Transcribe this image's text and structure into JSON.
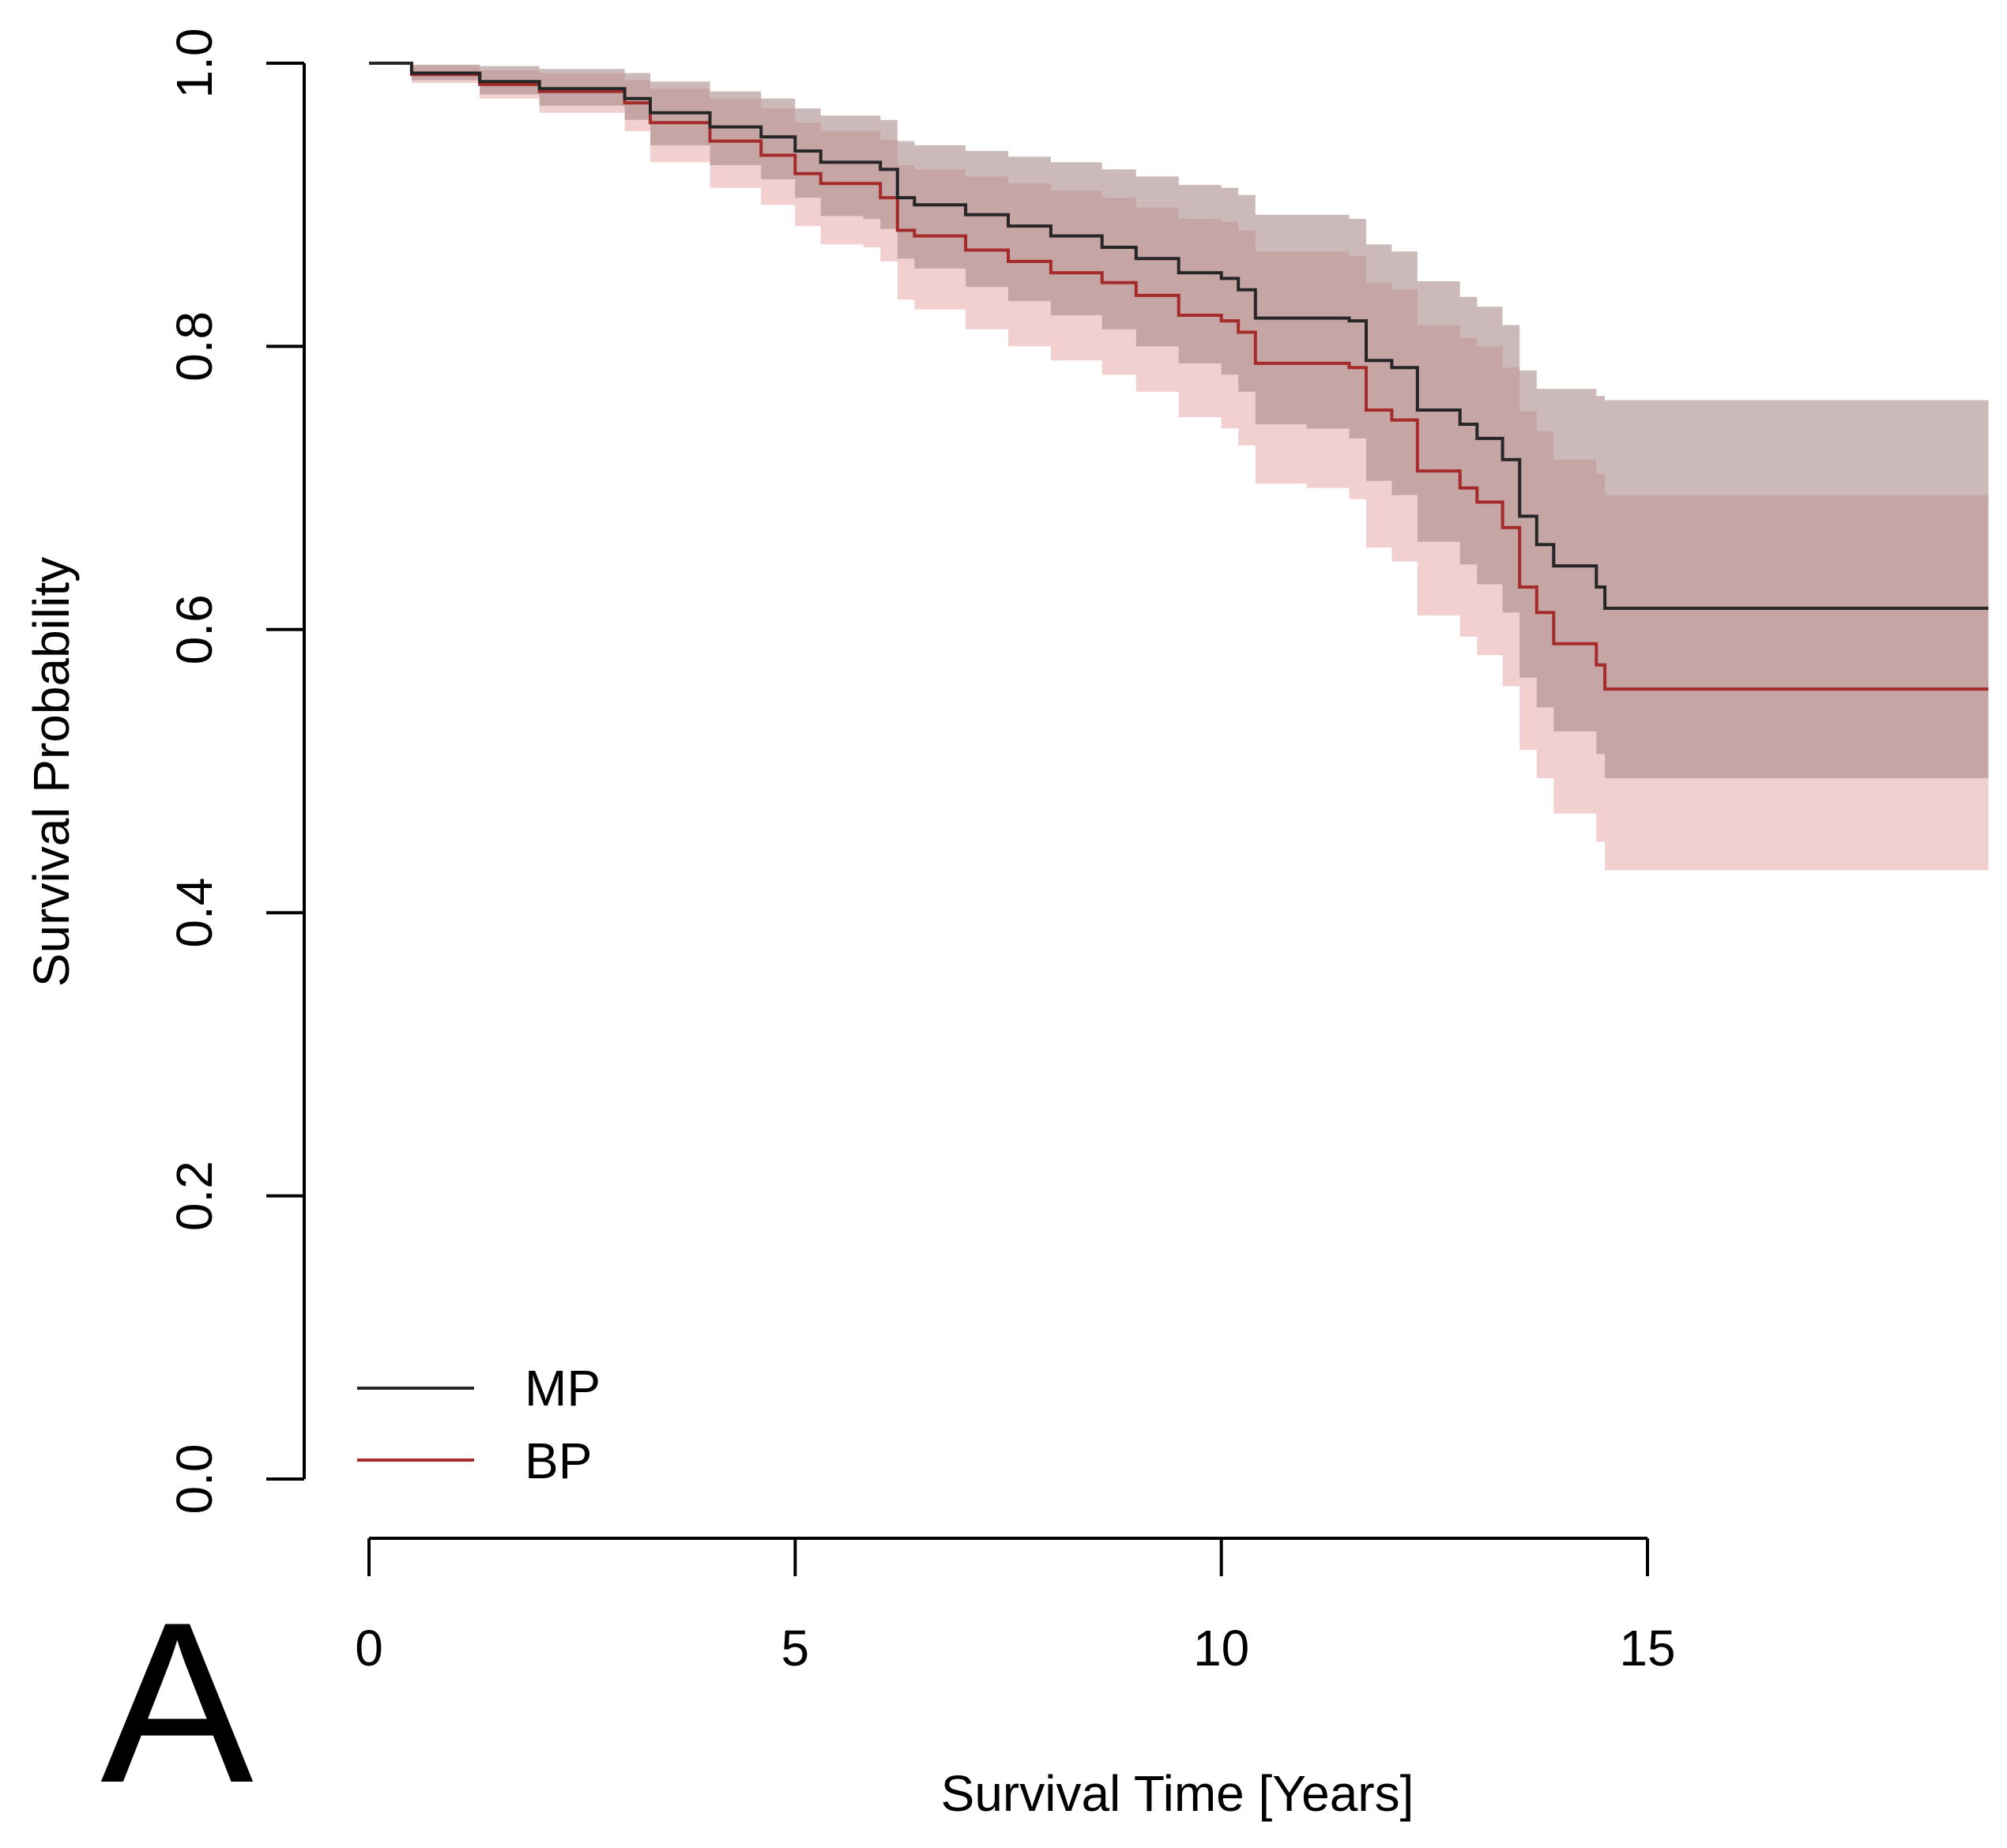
{
  "chart_data": {
    "type": "line",
    "subtype": "kaplan-meier step curves with confidence bands",
    "panel_label": "A",
    "xlabel": "Survival Time [Years]",
    "ylabel": "Survival Probability",
    "xlim": [
      0,
      19
    ],
    "ylim": [
      0,
      1
    ],
    "x_ticks": [
      0,
      5,
      10,
      15
    ],
    "x_tick_labels": [
      "0",
      "5",
      "10",
      "15"
    ],
    "y_ticks": [
      0,
      0.2,
      0.4,
      0.6,
      0.8,
      1.0
    ],
    "y_tick_labels": [
      "0.0",
      "0.2",
      "0.4",
      "0.6",
      "0.8",
      "1.0"
    ],
    "grid": false,
    "legend_position": "bottom-left",
    "series": [
      {
        "name": "MP",
        "color": "#262626",
        "band_color": "#a38282",
        "x": [
          0,
          0.5,
          1.3,
          2.0,
          3.0,
          3.3,
          4.0,
          4.6,
          5.0,
          5.3,
          5.8,
          6.0,
          6.2,
          6.4,
          7.0,
          7.5,
          8.0,
          8.6,
          9.0,
          9.5,
          10.0,
          10.2,
          10.4,
          11.0,
          11.5,
          11.7,
          12.0,
          12.3,
          12.8,
          13.0,
          13.3,
          13.5,
          13.7,
          13.9,
          14.4,
          14.5,
          19.0
        ],
        "y": [
          1.0,
          0.993,
          0.987,
          0.982,
          0.975,
          0.965,
          0.955,
          0.948,
          0.938,
          0.93,
          0.93,
          0.925,
          0.905,
          0.9,
          0.893,
          0.885,
          0.878,
          0.87,
          0.862,
          0.852,
          0.848,
          0.84,
          0.82,
          0.82,
          0.818,
          0.79,
          0.785,
          0.755,
          0.745,
          0.735,
          0.72,
          0.68,
          0.66,
          0.645,
          0.63,
          0.615,
          0.615
        ],
        "lower": [
          1.0,
          0.988,
          0.978,
          0.97,
          0.96,
          0.942,
          0.928,
          0.918,
          0.905,
          0.892,
          0.89,
          0.883,
          0.862,
          0.855,
          0.842,
          0.832,
          0.822,
          0.812,
          0.8,
          0.788,
          0.78,
          0.768,
          0.745,
          0.742,
          0.735,
          0.705,
          0.695,
          0.662,
          0.646,
          0.632,
          0.612,
          0.566,
          0.545,
          0.528,
          0.512,
          0.495,
          0.495
        ],
        "upper": [
          1.0,
          0.999,
          0.998,
          0.996,
          0.993,
          0.987,
          0.98,
          0.975,
          0.968,
          0.963,
          0.963,
          0.96,
          0.945,
          0.942,
          0.938,
          0.934,
          0.93,
          0.925,
          0.92,
          0.914,
          0.912,
          0.907,
          0.893,
          0.893,
          0.89,
          0.872,
          0.867,
          0.846,
          0.835,
          0.828,
          0.815,
          0.783,
          0.77,
          0.77,
          0.765,
          0.762,
          0.762
        ]
      },
      {
        "name": "BP",
        "color": "#a52a2a",
        "band_color": "#f0c8c8",
        "x": [
          0,
          0.5,
          1.3,
          2.0,
          3.0,
          3.3,
          4.0,
          4.6,
          5.0,
          5.3,
          5.8,
          6.0,
          6.2,
          6.4,
          7.0,
          7.5,
          8.0,
          8.6,
          9.0,
          9.5,
          10.0,
          10.2,
          10.4,
          11.0,
          11.5,
          11.7,
          12.0,
          12.3,
          12.8,
          13.0,
          13.3,
          13.5,
          13.7,
          13.9,
          14.4,
          14.5,
          19.0
        ],
        "y": [
          1.0,
          0.992,
          0.985,
          0.98,
          0.972,
          0.958,
          0.945,
          0.935,
          0.922,
          0.915,
          0.915,
          0.905,
          0.882,
          0.878,
          0.868,
          0.86,
          0.852,
          0.845,
          0.836,
          0.822,
          0.818,
          0.81,
          0.788,
          0.788,
          0.785,
          0.755,
          0.748,
          0.712,
          0.7,
          0.69,
          0.672,
          0.63,
          0.612,
          0.59,
          0.575,
          0.558,
          0.558
        ],
        "lower": [
          1.0,
          0.986,
          0.975,
          0.965,
          0.952,
          0.93,
          0.912,
          0.9,
          0.885,
          0.872,
          0.87,
          0.86,
          0.833,
          0.826,
          0.812,
          0.8,
          0.79,
          0.78,
          0.768,
          0.75,
          0.742,
          0.73,
          0.703,
          0.7,
          0.692,
          0.658,
          0.648,
          0.61,
          0.595,
          0.582,
          0.56,
          0.515,
          0.495,
          0.47,
          0.45,
          0.43,
          0.43
        ],
        "upper": [
          1.0,
          0.998,
          0.995,
          0.993,
          0.988,
          0.982,
          0.975,
          0.968,
          0.958,
          0.952,
          0.952,
          0.946,
          0.928,
          0.925,
          0.92,
          0.915,
          0.91,
          0.905,
          0.898,
          0.89,
          0.888,
          0.882,
          0.867,
          0.867,
          0.864,
          0.845,
          0.84,
          0.815,
          0.806,
          0.8,
          0.785,
          0.754,
          0.74,
          0.72,
          0.71,
          0.695,
          0.695
        ]
      }
    ]
  }
}
